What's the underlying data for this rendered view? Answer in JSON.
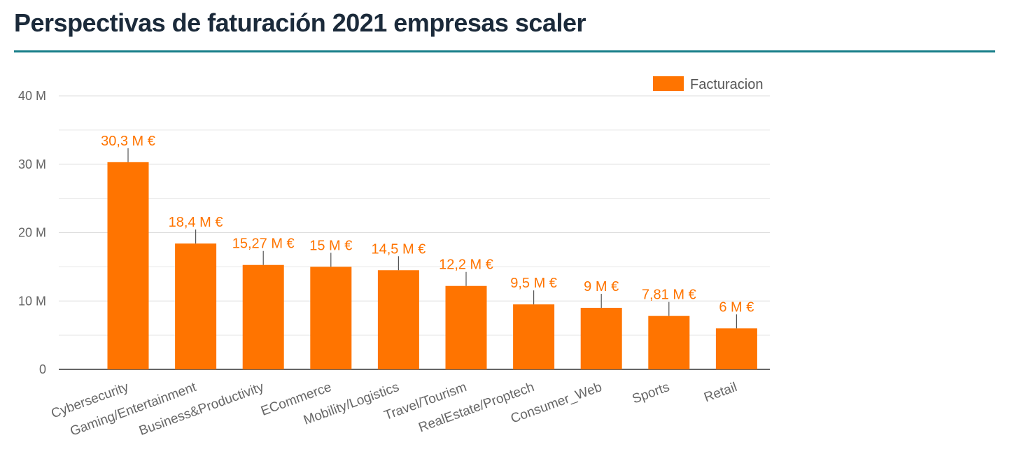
{
  "page": {
    "title": "Perspectivas de faturación 2021 empresas scaler",
    "accent_color": "#177e89"
  },
  "chart_data": {
    "type": "bar",
    "title": "Perspectivas de faturación 2021 empresas scaler",
    "xlabel": "",
    "ylabel": "",
    "ylim": [
      0,
      40
    ],
    "y_ticks": [
      {
        "value": 0,
        "label": "0"
      },
      {
        "value": 10,
        "label": "10 M"
      },
      {
        "value": 20,
        "label": "20 M"
      },
      {
        "value": 30,
        "label": "30 M"
      },
      {
        "value": 40,
        "label": "40 M"
      }
    ],
    "grid": true,
    "legend": {
      "position": "top-right"
    },
    "categories": [
      "Cybersecurity",
      "Gaming/Entertainment",
      "Business&Productivity",
      "ECommerce",
      "Mobility/Logistics",
      "Travel/Tourism",
      "RealEstate/Proptech",
      "Consumer_Web",
      "Sports",
      "Retail"
    ],
    "series": [
      {
        "name": "Facturacion",
        "color": "#ff7400",
        "values": [
          30.3,
          18.4,
          15.27,
          15,
          14.5,
          12.2,
          9.5,
          9,
          7.81,
          6
        ],
        "labels": [
          "30,3 M €",
          "18,4 M €",
          "15,27 M €",
          "15 M €",
          "14,5 M €",
          "12,2 M €",
          "9,5 M €",
          "9 M €",
          "7,81 M €",
          "6 M €"
        ]
      }
    ]
  }
}
